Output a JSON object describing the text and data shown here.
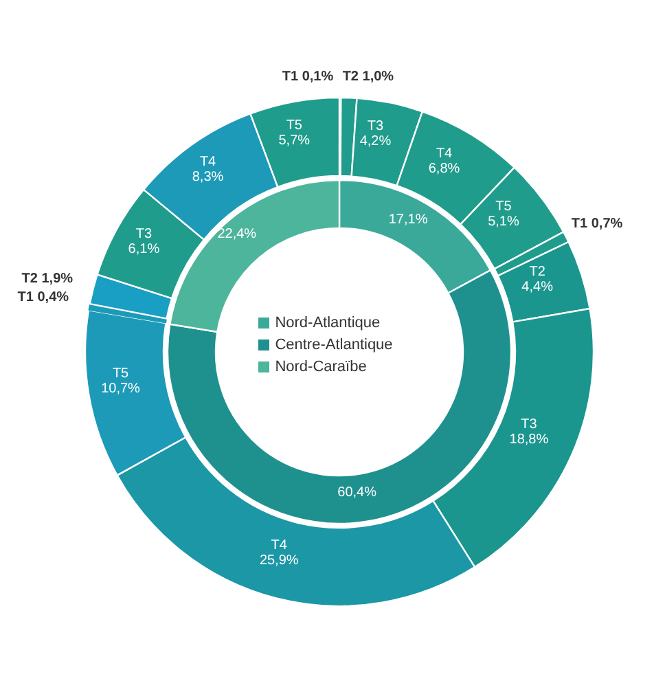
{
  "chart_data": [
    {
      "type": "donut",
      "legend": "center",
      "categories": [
        "Nord-Atlantique",
        "Centre-Atlantique",
        "Nord-Caraïbe"
      ],
      "values": [
        17.1,
        60.4,
        22.4
      ],
      "value_labels": [
        "17,1%",
        "60,4%",
        "22,4%"
      ],
      "colors": [
        "#3aa99a",
        "#1e918f",
        "#4cb59c"
      ]
    },
    {
      "type": "donut",
      "categories": [
        "T1",
        "T2",
        "T3",
        "T4",
        "T5",
        "T1",
        "T2",
        "T3",
        "T4",
        "T5",
        "T1",
        "T2",
        "T3",
        "T4",
        "T5"
      ],
      "values": [
        0.1,
        1.0,
        4.2,
        6.8,
        5.1,
        0.7,
        4.4,
        18.8,
        25.9,
        10.7,
        0.4,
        1.9,
        6.1,
        8.3,
        5.7
      ],
      "value_labels": [
        "0,1%",
        "1,0%",
        "4,2%",
        "6,8%",
        "5,1%",
        "0,7%",
        "4,4%",
        "18,8%",
        "25,9%",
        "10,7%",
        "0,4%",
        "1,9%",
        "6,1%",
        "8,3%",
        "5,7%"
      ],
      "colors": [
        "#16a3c9",
        "#1f9c8c",
        "#1f9c8c",
        "#1f9c8c",
        "#1f9c8c",
        "#1f9c8c",
        "#1a968e",
        "#1a968e",
        "#1b97a6",
        "#1c9ab8",
        "#1c9ab8",
        "#1a9fc4",
        "#1f9c8c",
        "#1c9ab8",
        "#1f9c8c"
      ]
    }
  ]
}
